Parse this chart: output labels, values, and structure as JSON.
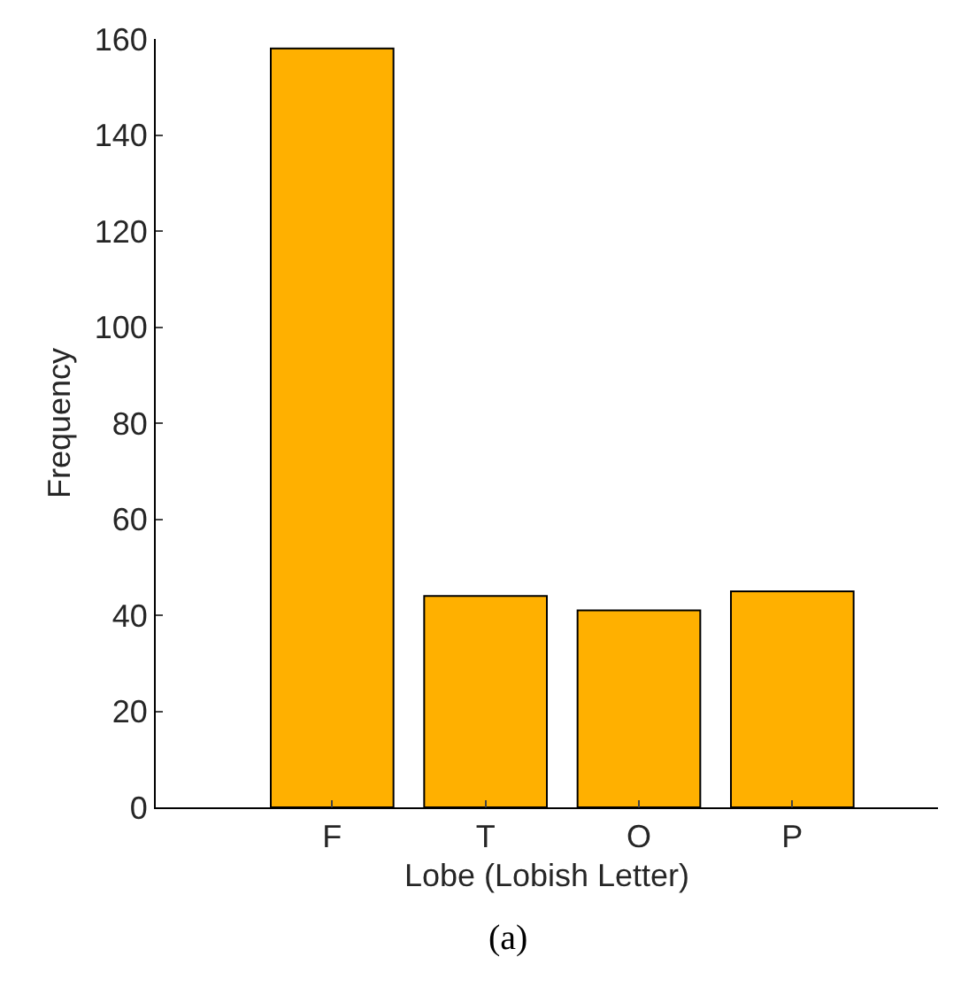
{
  "chart_data": {
    "type": "bar",
    "xlabel": "Lobe (Lobish Letter)",
    "ylabel": "Frequency",
    "categories": [
      "F",
      "T",
      "O",
      "P"
    ],
    "values": [
      158,
      44,
      41,
      45
    ],
    "color": "#ffb000",
    "ylim": [
      0,
      160
    ],
    "yticks": [
      0,
      20,
      40,
      60,
      80,
      100,
      120,
      140,
      160
    ],
    "annotations": [
      "(a)"
    ]
  }
}
